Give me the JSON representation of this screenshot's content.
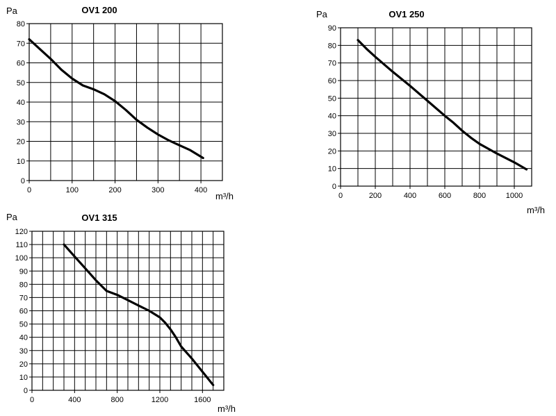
{
  "chart_data": [
    {
      "type": "line",
      "title": "OV1 200",
      "ylabel": "Pa",
      "xlabel": "m³/h",
      "xlim": [
        0,
        450
      ],
      "ylim": [
        0,
        80
      ],
      "xticks": [
        0,
        100,
        200,
        300,
        400
      ],
      "xgrid": [
        0,
        50,
        100,
        150,
        200,
        250,
        300,
        350,
        400,
        450
      ],
      "yticks": [
        0,
        10,
        20,
        30,
        40,
        50,
        60,
        70,
        80
      ],
      "grid": true,
      "series": [
        {
          "x": [
            0,
            25,
            50,
            75,
            100,
            125,
            150,
            175,
            200,
            225,
            250,
            275,
            300,
            325,
            350,
            375,
            405
          ],
          "y": [
            72,
            67,
            62,
            56.5,
            52,
            48.5,
            46.5,
            44,
            40.5,
            36,
            31,
            27,
            23.5,
            20.5,
            18,
            15.5,
            11.5
          ]
        }
      ]
    },
    {
      "type": "line",
      "title": "OV1 250",
      "ylabel": "Pa",
      "xlabel": "m³/h",
      "xlim": [
        0,
        1100
      ],
      "ylim": [
        0,
        90
      ],
      "xticks": [
        0,
        200,
        400,
        600,
        800,
        1000
      ],
      "xgrid": [
        0,
        100,
        200,
        300,
        400,
        500,
        600,
        700,
        800,
        900,
        1000,
        1100
      ],
      "yticks": [
        0,
        10,
        20,
        30,
        40,
        50,
        60,
        70,
        80,
        90
      ],
      "grid": true,
      "series": [
        {
          "x": [
            100,
            150,
            200,
            300,
            400,
            500,
            600,
            650,
            700,
            750,
            800,
            900,
            1000,
            1070
          ],
          "y": [
            83,
            78,
            73.5,
            65,
            57,
            48.5,
            40,
            36,
            31.5,
            27.5,
            24,
            18.5,
            13.5,
            9.5
          ]
        }
      ]
    },
    {
      "type": "line",
      "title": "OV1 315",
      "ylabel": "Pa",
      "xlabel": "m³/h",
      "xlim": [
        0,
        1800
      ],
      "ylim": [
        0,
        120
      ],
      "xticks": [
        0,
        400,
        800,
        1200,
        1600
      ],
      "xgrid": [
        0,
        100,
        200,
        300,
        400,
        500,
        600,
        700,
        800,
        900,
        1000,
        1100,
        1200,
        1300,
        1400,
        1500,
        1600,
        1700,
        1800
      ],
      "yticks": [
        0,
        10,
        20,
        30,
        40,
        50,
        60,
        70,
        80,
        90,
        100,
        110,
        120
      ],
      "grid": true,
      "series": [
        {
          "x": [
            300,
            400,
            500,
            600,
            700,
            800,
            900,
            1000,
            1100,
            1200,
            1250,
            1300,
            1350,
            1400,
            1500,
            1600,
            1700
          ],
          "y": [
            110,
            101,
            92,
            83,
            75,
            72,
            68,
            64,
            60,
            55,
            51,
            46,
            40,
            33,
            24,
            14,
            4
          ]
        }
      ]
    }
  ]
}
